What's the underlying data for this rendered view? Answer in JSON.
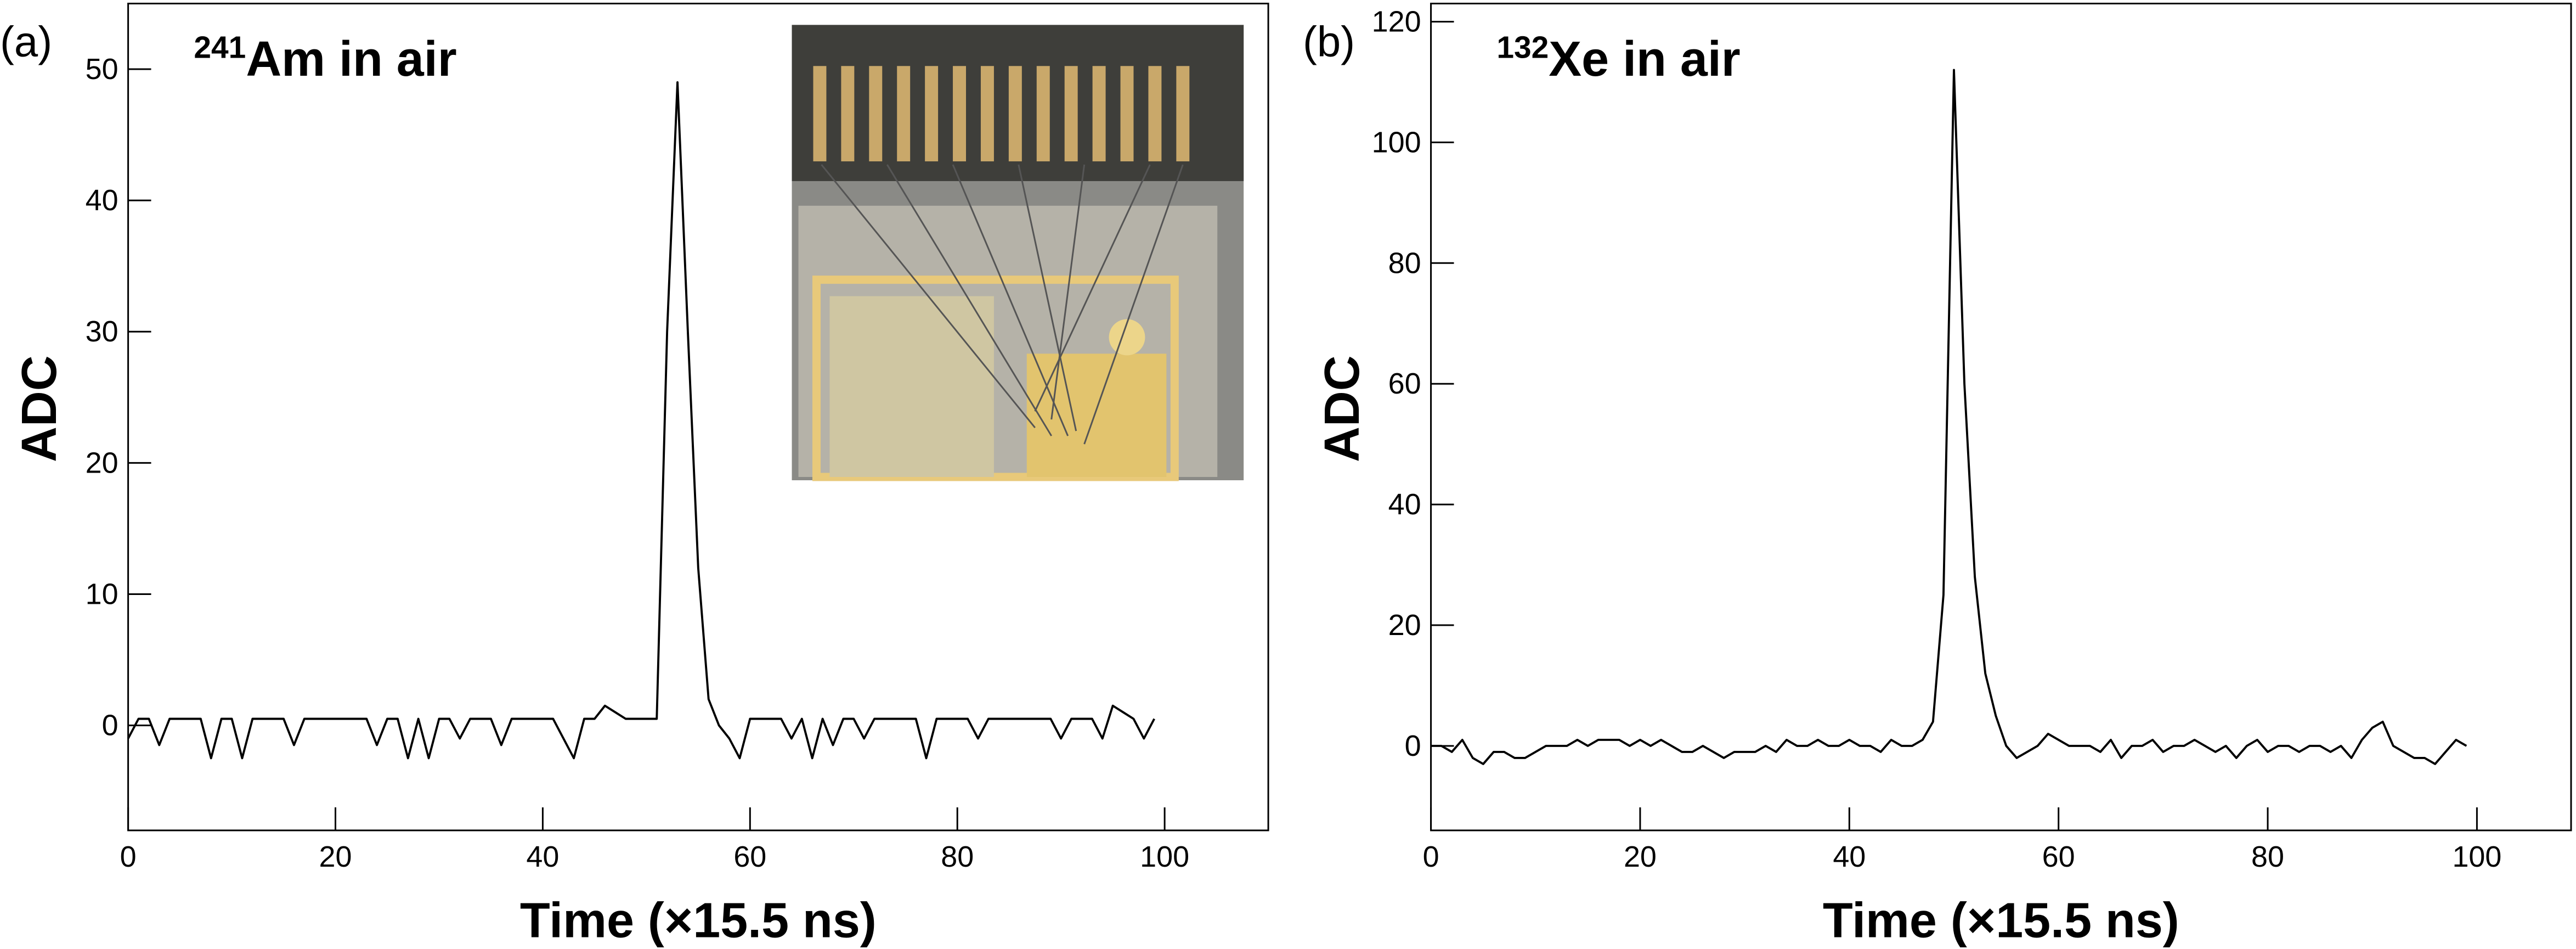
{
  "chart_data": [
    {
      "type": "line",
      "panel_label": "(a)",
      "title_mass_number": "241",
      "title": "Am in air",
      "x_label": "Time (×15.5 ns)",
      "y_label": "ADC",
      "color": "#000000",
      "xlim": [
        0,
        110
      ],
      "ylim": [
        -8,
        55
      ],
      "xticks": [
        0,
        20,
        40,
        60,
        80,
        100
      ],
      "yticks": [
        0,
        10,
        20,
        30,
        40,
        50
      ],
      "x": [
        0,
        1,
        2,
        3,
        4,
        5,
        6,
        7,
        8,
        9,
        10,
        11,
        12,
        13,
        14,
        15,
        16,
        17,
        18,
        19,
        20,
        21,
        22,
        23,
        24,
        25,
        26,
        27,
        28,
        29,
        30,
        31,
        32,
        33,
        34,
        35,
        36,
        37,
        38,
        39,
        40,
        41,
        42,
        43,
        44,
        45,
        46,
        47,
        48,
        49,
        50,
        51,
        52,
        53,
        54,
        55,
        56,
        57,
        58,
        59,
        60,
        61,
        62,
        63,
        64,
        65,
        66,
        67,
        68,
        69,
        70,
        71,
        72,
        73,
        74,
        75,
        76,
        77,
        78,
        79,
        80,
        81,
        82,
        83,
        84,
        85,
        86,
        87,
        88,
        89,
        90,
        91,
        92,
        93,
        94,
        95,
        96,
        97,
        98,
        99
      ],
      "values": [
        -1,
        0.5,
        0.5,
        -1.5,
        0.5,
        0.5,
        0.5,
        0.5,
        -2.5,
        0.5,
        0.5,
        -2.5,
        0.5,
        0.5,
        0.5,
        0.5,
        -1.5,
        0.5,
        0.5,
        0.5,
        0.5,
        0.5,
        0.5,
        0.5,
        -1.5,
        0.5,
        0.5,
        -2.5,
        0.5,
        -2.5,
        0.5,
        0.5,
        -1,
        0.5,
        0.5,
        0.5,
        -1.5,
        0.5,
        0.5,
        0.5,
        0.5,
        0.5,
        -1,
        -2.5,
        0.5,
        0.5,
        1.5,
        1,
        0.5,
        0.5,
        0.5,
        0.5,
        30,
        49,
        30,
        12,
        2,
        0,
        -1,
        -2.5,
        0.5,
        0.5,
        0.5,
        0.5,
        -1,
        0.5,
        -2.5,
        0.5,
        -1.5,
        0.5,
        0.5,
        -1,
        0.5,
        0.5,
        0.5,
        0.5,
        0.5,
        -2.5,
        0.5,
        0.5,
        0.5,
        0.5,
        -1,
        0.5,
        0.5,
        0.5,
        0.5,
        0.5,
        0.5,
        0.5,
        -1,
        0.5,
        0.5,
        0.5,
        -1,
        1.5,
        1,
        0.5,
        -1,
        0.5
      ]
    },
    {
      "type": "line",
      "panel_label": "(b)",
      "title_mass_number": "132",
      "title": "Xe in air",
      "x_label": "Time (×15.5 ns)",
      "y_label": "ADC",
      "color": "#000000",
      "xlim": [
        0,
        109
      ],
      "ylim": [
        -14,
        123
      ],
      "xticks": [
        0,
        20,
        40,
        60,
        80,
        100
      ],
      "yticks": [
        0,
        20,
        40,
        60,
        80,
        100,
        120
      ],
      "x": [
        0,
        1,
        2,
        3,
        4,
        5,
        6,
        7,
        8,
        9,
        10,
        11,
        12,
        13,
        14,
        15,
        16,
        17,
        18,
        19,
        20,
        21,
        22,
        23,
        24,
        25,
        26,
        27,
        28,
        29,
        30,
        31,
        32,
        33,
        34,
        35,
        36,
        37,
        38,
        39,
        40,
        41,
        42,
        43,
        44,
        45,
        46,
        47,
        48,
        49,
        50,
        51,
        52,
        53,
        54,
        55,
        56,
        57,
        58,
        59,
        60,
        61,
        62,
        63,
        64,
        65,
        66,
        67,
        68,
        69,
        70,
        71,
        72,
        73,
        74,
        75,
        76,
        77,
        78,
        79,
        80,
        81,
        82,
        83,
        84,
        85,
        86,
        87,
        88,
        89,
        90,
        91,
        92,
        93,
        94,
        95,
        96,
        97,
        98,
        99
      ],
      "values": [
        0,
        0,
        -1,
        1,
        -2,
        -3,
        -1,
        -1,
        -2,
        -2,
        -1,
        0,
        0,
        0,
        1,
        0,
        1,
        1,
        1,
        0,
        1,
        0,
        1,
        0,
        -1,
        -1,
        0,
        -1,
        -2,
        -1,
        -1,
        -1,
        0,
        -1,
        1,
        0,
        0,
        1,
        0,
        0,
        1,
        0,
        0,
        -1,
        1,
        0,
        0,
        1,
        4,
        25,
        112,
        60,
        28,
        12,
        5,
        0,
        -2,
        -1,
        0,
        2,
        1,
        0,
        0,
        0,
        -1,
        1,
        -2,
        0,
        0,
        1,
        -1,
        0,
        0,
        1,
        0,
        -1,
        0,
        -2,
        0,
        1,
        -1,
        0,
        0,
        -1,
        0,
        0,
        -1,
        0,
        -2,
        1,
        3,
        4,
        0,
        -1,
        -2,
        -2,
        -3,
        -1,
        1,
        0
      ]
    }
  ]
}
